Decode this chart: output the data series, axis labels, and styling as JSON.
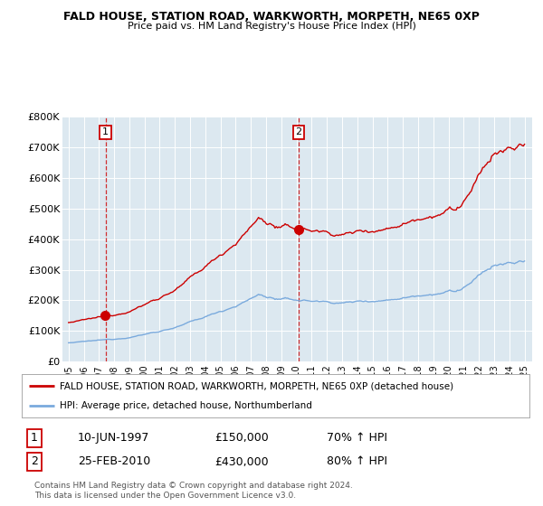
{
  "title": "FALD HOUSE, STATION ROAD, WARKWORTH, MORPETH, NE65 0XP",
  "subtitle": "Price paid vs. HM Land Registry's House Price Index (HPI)",
  "ylim": [
    0,
    800000
  ],
  "yticks": [
    0,
    100000,
    200000,
    300000,
    400000,
    500000,
    600000,
    700000,
    800000
  ],
  "ytick_labels": [
    "£0",
    "£100K",
    "£200K",
    "£300K",
    "£400K",
    "£500K",
    "£600K",
    "£700K",
    "£800K"
  ],
  "red_line_color": "#cc0000",
  "blue_line_color": "#7aaadd",
  "purchase1_date": 1997.44,
  "purchase1_price": 150000,
  "purchase2_date": 2010.14,
  "purchase2_price": 430000,
  "legend_red": "FALD HOUSE, STATION ROAD, WARKWORTH, MORPETH, NE65 0XP (detached house)",
  "legend_blue": "HPI: Average price, detached house, Northumberland",
  "table_row1": [
    "1",
    "10-JUN-1997",
    "£150,000",
    "70% ↑ HPI"
  ],
  "table_row2": [
    "2",
    "25-FEB-2010",
    "£430,000",
    "80% ↑ HPI"
  ],
  "footnote": "Contains HM Land Registry data © Crown copyright and database right 2024.\nThis data is licensed under the Open Government Licence v3.0.",
  "plot_bg_color": "#dce8f0"
}
